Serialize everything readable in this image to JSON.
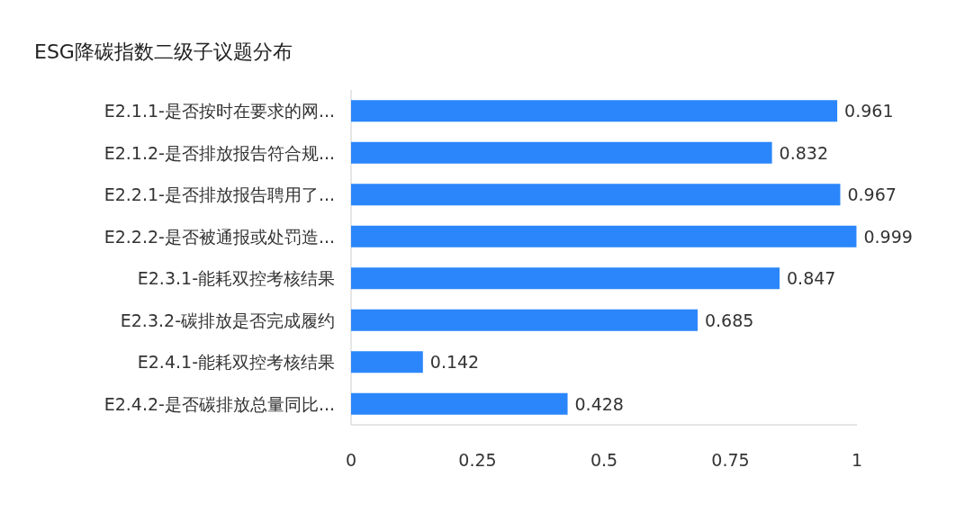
{
  "chart_data": {
    "type": "bar",
    "orientation": "horizontal",
    "title": "ESG降碳指数二级子议题分布",
    "categories": [
      "E2.1.1-是否按时在要求的网...",
      "E2.1.2-是否排放报告符合规...",
      "E2.2.1-是否排放报告聘用了...",
      "E2.2.2-是否被通报或处罚造...",
      "E2.3.1-能耗双控考核结果",
      "E2.3.2-碳排放是否完成履约",
      "E2.4.1-能耗双控考核结果",
      "E2.4.2-是否碳排放总量同比..."
    ],
    "values": [
      0.961,
      0.832,
      0.967,
      0.999,
      0.847,
      0.685,
      0.142,
      0.428
    ],
    "color": "#2b86fb",
    "xlim": [
      0,
      1
    ],
    "xticks": [
      0,
      0.25,
      0.5,
      0.75,
      1
    ],
    "data_labels": true,
    "grid": false
  }
}
